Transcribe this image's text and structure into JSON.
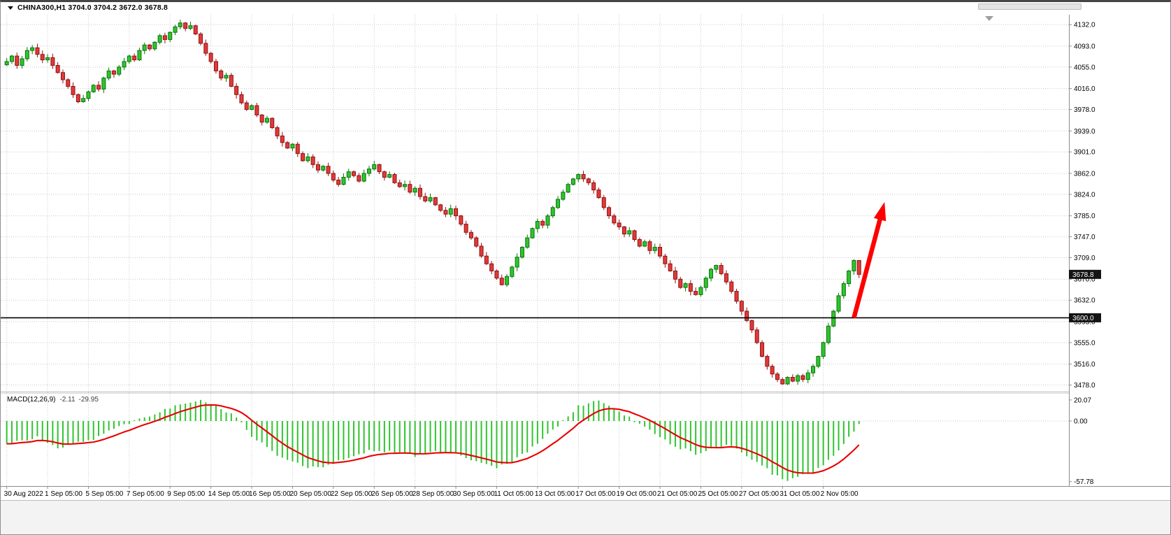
{
  "header": {
    "title": "CHINA300,H1  3704.0 3704.2 3672.0 3678.8",
    "symbol": "CHINA300",
    "timeframe": "H1",
    "ohlc": {
      "open": "3704.0",
      "high": "3704.2",
      "low": "3672.0",
      "close": "3678.8"
    }
  },
  "colors": {
    "background": "#ffffff",
    "bull": "#2fc42f",
    "bull_border": "#0b720b",
    "bear": "#e03a3a",
    "bear_border": "#8f1111",
    "grid": "#c9c9c9",
    "axis_line": "#8c8c8c",
    "hline": "#000000",
    "badge_bg": "#141414",
    "badge_text": "#ffffff",
    "macd_histogram": "#2fc42f",
    "macd_signal": "#e80000",
    "arrow": "#ff0000"
  },
  "chart_data": [
    {
      "type": "candlestick",
      "title": "CHINA300,H1",
      "bars_per_x_tick": 8,
      "x_tick_labels": [
        "30 Aug 2022",
        "1 Sep 05:00",
        "5 Sep 05:00",
        "7 Sep 05:00",
        "9 Sep 05:00",
        "14 Sep 05:00",
        "16 Sep 05:00",
        "20 Sep 05:00",
        "22 Sep 05:00",
        "26 Sep 05:00",
        "28 Sep 05:00",
        "30 Sep 05:00",
        "11 Oct 05:00",
        "13 Oct 05:00",
        "17 Oct 05:00",
        "19 Oct 05:00",
        "21 Oct 05:00",
        "25 Oct 05:00",
        "27 Oct 05:00",
        "31 Oct 05:00",
        "2 Nov 05:00"
      ],
      "closes": [
        4065,
        4075,
        4058,
        4070,
        4085,
        4090,
        4078,
        4068,
        4072,
        4058,
        4045,
        4032,
        4020,
        4005,
        3992,
        3998,
        4010,
        4022,
        4015,
        4035,
        4048,
        4042,
        4055,
        4065,
        4075,
        4068,
        4085,
        4095,
        4088,
        4100,
        4112,
        4105,
        4118,
        4128,
        4135,
        4125,
        4130,
        4115,
        4098,
        4080,
        4065,
        4048,
        4035,
        4040,
        4020,
        4005,
        3990,
        3978,
        3985,
        3968,
        3955,
        3962,
        3945,
        3930,
        3918,
        3908,
        3915,
        3898,
        3885,
        3892,
        3878,
        3868,
        3875,
        3862,
        3850,
        3842,
        3855,
        3865,
        3858,
        3848,
        3862,
        3870,
        3878,
        3865,
        3855,
        3860,
        3845,
        3838,
        3842,
        3828,
        3835,
        3820,
        3812,
        3818,
        3805,
        3795,
        3788,
        3798,
        3785,
        3770,
        3755,
        3745,
        3730,
        3712,
        3698,
        3685,
        3672,
        3660,
        3675,
        3692,
        3710,
        3728,
        3745,
        3762,
        3775,
        3768,
        3785,
        3800,
        3815,
        3828,
        3842,
        3852,
        3860,
        3852,
        3845,
        3832,
        3818,
        3800,
        3785,
        3772,
        3765,
        3752,
        3758,
        3742,
        3730,
        3738,
        3722,
        3728,
        3712,
        3698,
        3685,
        3670,
        3655,
        3662,
        3648,
        3642,
        3655,
        3672,
        3688,
        3695,
        3680,
        3665,
        3648,
        3630,
        3612,
        3595,
        3578,
        3555,
        3530,
        3512,
        3498,
        3488,
        3480,
        3492,
        3485,
        3495,
        3488,
        3500,
        3512,
        3530,
        3555,
        3585,
        3612,
        3640,
        3662,
        3685,
        3704.0,
        3678.8
      ],
      "last_bar_ohlc": {
        "open": 3704.0,
        "high": 3704.2,
        "low": 3672.0,
        "close": 3678.8
      },
      "y_ticks": [
        4132,
        4093,
        4055,
        4016,
        3978,
        3939,
        3901,
        3862,
        3824,
        3785,
        3747,
        3709,
        3670,
        3632,
        3593,
        3555,
        3516,
        3478
      ],
      "y_tick_labels": [
        "4132.0",
        "4093.0",
        "4055.0",
        "4016.0",
        "3978.0",
        "3939.0",
        "3901.0",
        "3862.0",
        "3824.0",
        "3785.0",
        "3747.0",
        "3709.0",
        "3670.0",
        "3632.0",
        "3593.0",
        "3555.0",
        "3516.0",
        "3478.0"
      ],
      "ylim": [
        3466,
        4150
      ],
      "grid": "dotted",
      "legend_position": "none",
      "horizontal_line": {
        "price": 3600.0,
        "label": "3600.0"
      },
      "price_marker": {
        "price": 3678.8,
        "label": "3678.8"
      },
      "arrow_annotation": {
        "from_bar": 166,
        "from_price": 3600,
        "to_bar": 172,
        "to_price": 3810
      }
    },
    {
      "type": "bar",
      "name": "MACD(12,26,9)",
      "main_value": "-2.11",
      "signal_value": "-29.95",
      "y_ticks": [
        20.07,
        0,
        -57.78
      ],
      "y_tick_labels": [
        "20.07",
        "0.00",
        "-57.78"
      ],
      "ylim": [
        -62,
        26
      ],
      "histogram_points": [
        [
          0,
          -22
        ],
        [
          6,
          -15
        ],
        [
          10,
          -26
        ],
        [
          16,
          -19
        ],
        [
          22,
          -6
        ],
        [
          27,
          3
        ],
        [
          33,
          14
        ],
        [
          37,
          20
        ],
        [
          41,
          15
        ],
        [
          45,
          3
        ],
        [
          48,
          -14
        ],
        [
          53,
          -33
        ],
        [
          58,
          -43
        ],
        [
          62,
          -45
        ],
        [
          66,
          -36
        ],
        [
          71,
          -28
        ],
        [
          75,
          -29
        ],
        [
          80,
          -33
        ],
        [
          84,
          -28
        ],
        [
          88,
          -31
        ],
        [
          92,
          -39
        ],
        [
          96,
          -45
        ],
        [
          100,
          -36
        ],
        [
          104,
          -22
        ],
        [
          108,
          -4
        ],
        [
          112,
          14
        ],
        [
          116,
          19
        ],
        [
          119,
          12
        ],
        [
          123,
          0
        ],
        [
          127,
          -12
        ],
        [
          131,
          -24
        ],
        [
          135,
          -31
        ],
        [
          138,
          -27
        ],
        [
          141,
          -23
        ],
        [
          144,
          -29
        ],
        [
          147,
          -39
        ],
        [
          150,
          -50
        ],
        [
          153,
          -57.78
        ],
        [
          156,
          -52
        ],
        [
          159,
          -46
        ],
        [
          162,
          -34
        ],
        [
          164,
          -22
        ],
        [
          166,
          -9
        ],
        [
          167,
          -2.11
        ]
      ],
      "signal_line": "EMA(9) of histogram values"
    }
  ]
}
